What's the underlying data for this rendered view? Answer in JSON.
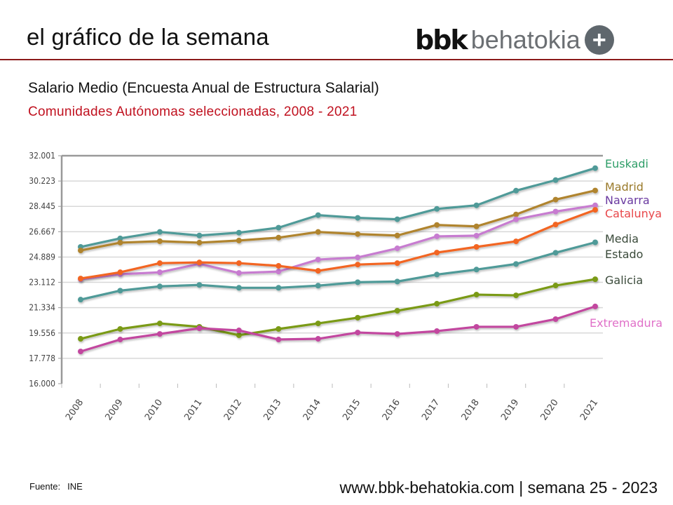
{
  "header": {
    "title": "el gráfico de la semana",
    "logo_bbk": "bbk",
    "logo_behatokia": "behatokia",
    "logo_plus": "+",
    "rule_color": "#8b1a1a"
  },
  "footer": {
    "source_label": "Fuente:",
    "source_value": "INE",
    "website": "www.bbk-behatokia.com | semana 25 - 2023"
  },
  "chart_data": {
    "type": "line",
    "title": "Salario Medio (Encuesta Anual de Estructura Salarial)",
    "subtitle": "Comunidades Autónomas seleccionadas, 2008 - 2021",
    "xlabel": "",
    "ylabel": "",
    "ylim": [
      16000,
      32001
    ],
    "yticks": [
      16000,
      17778,
      19556,
      21334,
      23112,
      24889,
      26667,
      28445,
      30223,
      32001
    ],
    "ytick_labels": [
      "16.000",
      "17.778",
      "19.556",
      "21.334",
      "23.112",
      "24.889",
      "26.667",
      "28.445",
      "30.223",
      "32.001"
    ],
    "grid": true,
    "legend": "right (direct labels at line ends)",
    "x": [
      "2008",
      "2009",
      "2010",
      "2011",
      "2012",
      "2013",
      "2014",
      "2015",
      "2016",
      "2017",
      "2018",
      "2019",
      "2020",
      "2021"
    ],
    "series": [
      {
        "name": "Euskadi",
        "label": "Euskadi",
        "color": "#4f9a98",
        "label_color": "#2e9e68",
        "values": [
          25600,
          26200,
          26650,
          26400,
          26600,
          26950,
          27830,
          27640,
          27540,
          28270,
          28520,
          29550,
          30290,
          31130
        ]
      },
      {
        "name": "Madrid",
        "label": "Madrid",
        "color": "#b0842e",
        "label_color": "#9a7a2a",
        "values": [
          25350,
          25900,
          26000,
          25900,
          26050,
          26250,
          26650,
          26500,
          26400,
          27140,
          27040,
          27880,
          28920,
          29560
        ]
      },
      {
        "name": "Navarra",
        "label": "Navarra",
        "color": "#c77cd0",
        "label_color": "#6a3aa0",
        "values": [
          23330,
          23680,
          23820,
          24410,
          23770,
          23870,
          24710,
          24860,
          25500,
          26340,
          26390,
          27530,
          28080,
          28520
        ]
      },
      {
        "name": "Catalunya",
        "label": "Catalunya",
        "color": "#f26522",
        "label_color": "#e8474a",
        "values": [
          23380,
          23820,
          24460,
          24510,
          24460,
          24270,
          23920,
          24360,
          24460,
          25200,
          25600,
          25990,
          27170,
          28200
        ]
      },
      {
        "name": "Media Estado",
        "label": "Media\nEstado",
        "color": "#4f9a98",
        "label_color": "#3a4a3a",
        "values": [
          21900,
          22530,
          22830,
          22930,
          22730,
          22730,
          22880,
          23120,
          23170,
          23660,
          24010,
          24400,
          25190,
          25920
        ]
      },
      {
        "name": "Galicia",
        "label": "Galicia",
        "color": "#7a9a12",
        "label_color": "#3a4a3a",
        "values": [
          19150,
          19840,
          20230,
          19990,
          19400,
          19840,
          20230,
          20630,
          21120,
          21610,
          22250,
          22200,
          22890,
          23330
        ]
      },
      {
        "name": "Extremadura",
        "label": "Extremadura",
        "color": "#c2479f",
        "label_color": "#e070c8",
        "values": [
          18260,
          19100,
          19490,
          19890,
          19740,
          19100,
          19150,
          19590,
          19490,
          19690,
          19990,
          19990,
          20530,
          21420
        ]
      }
    ]
  }
}
